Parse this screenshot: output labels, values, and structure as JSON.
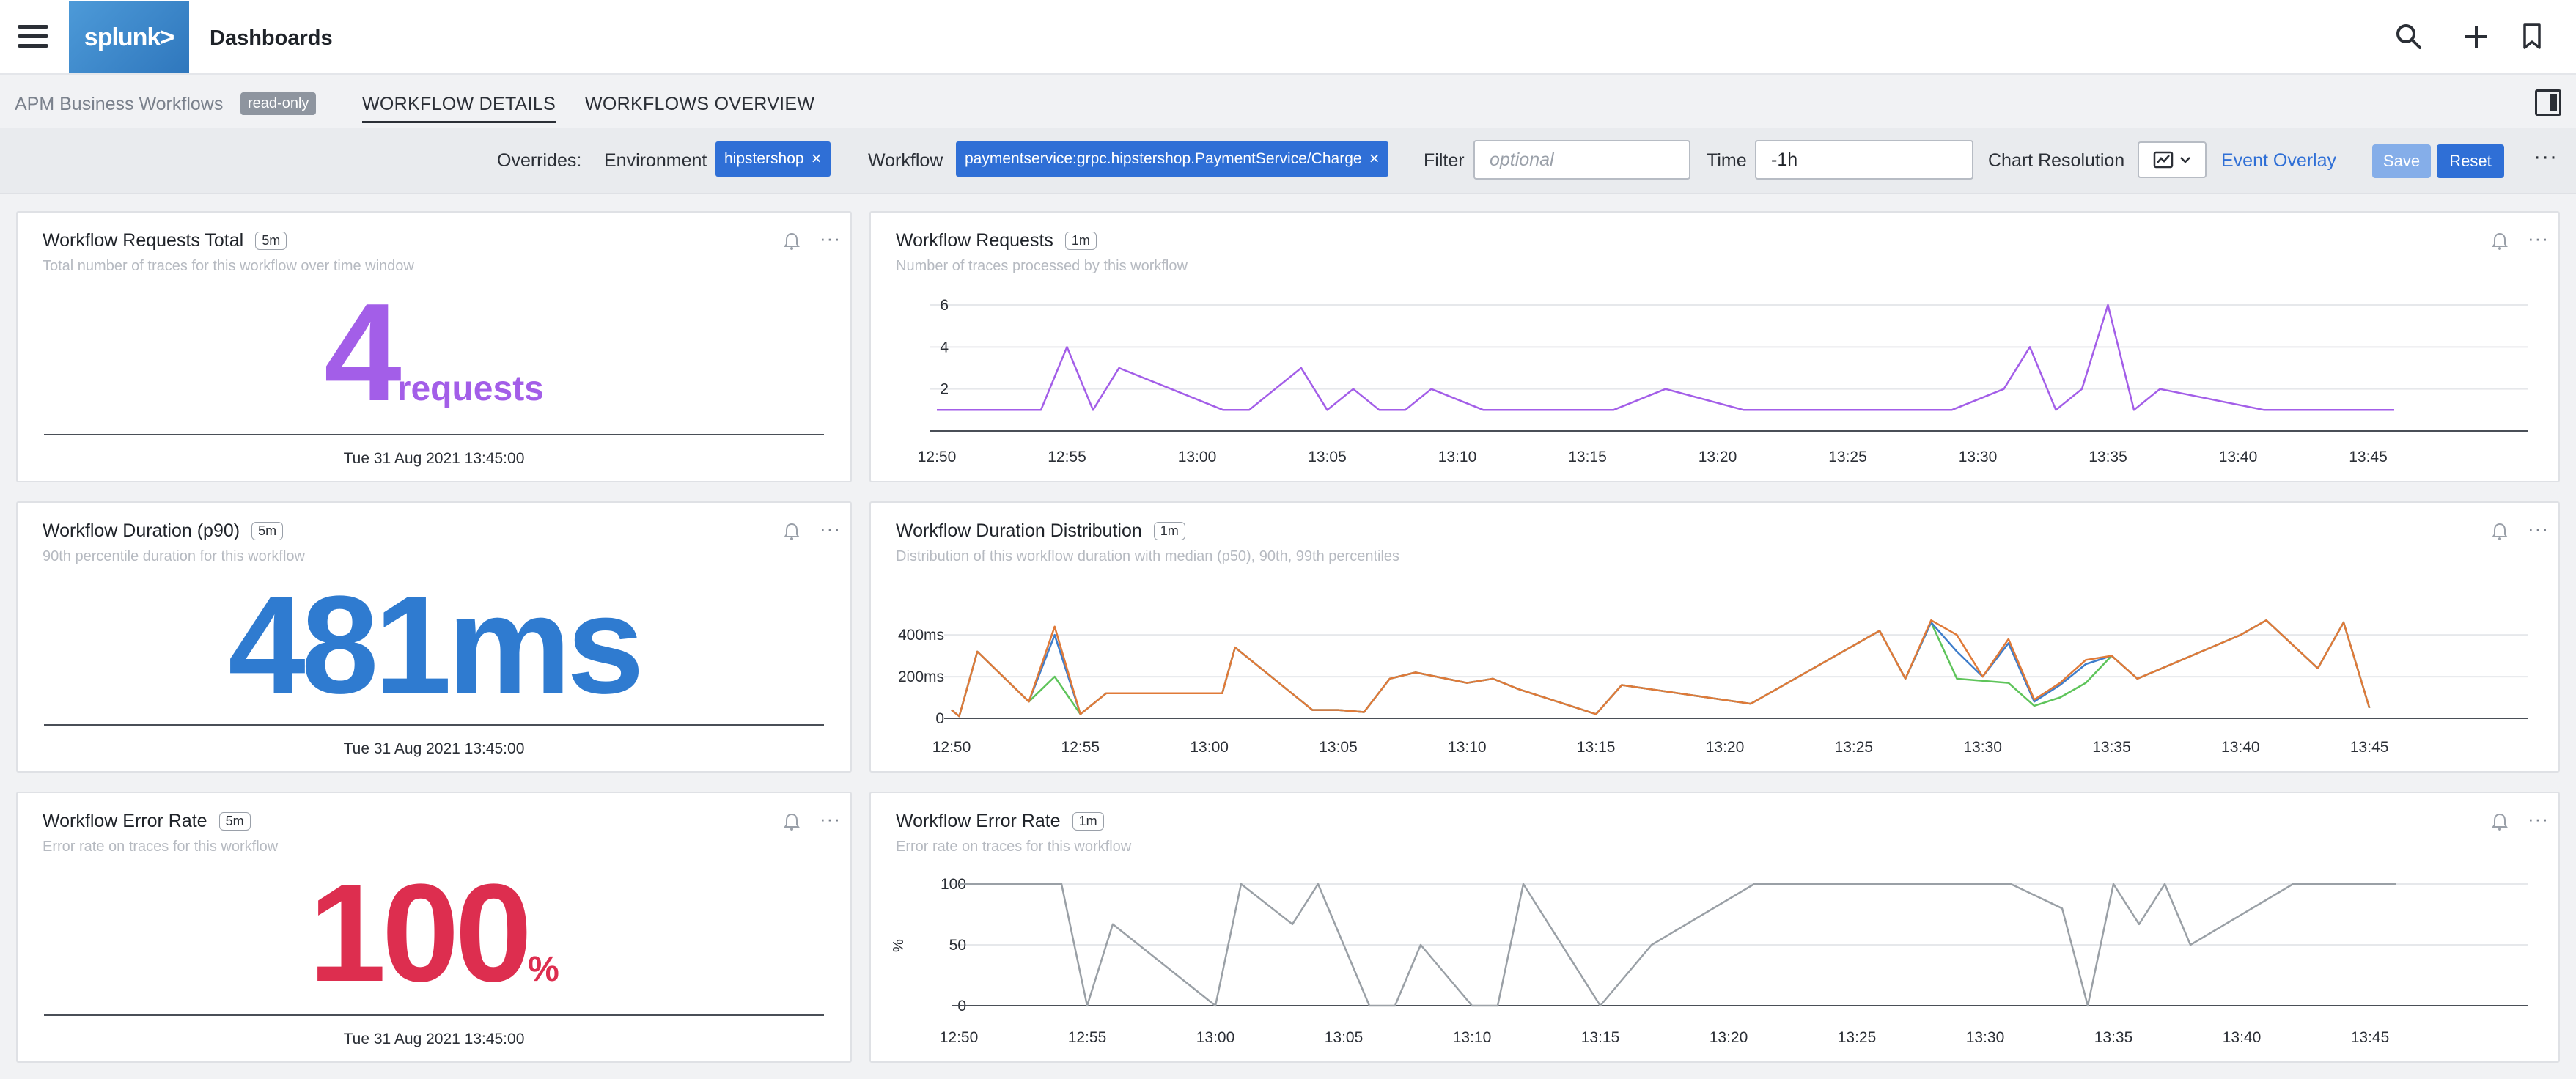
{
  "app": {
    "logo_text": "splunk>",
    "title": "Dashboards"
  },
  "tabs": {
    "breadcrumb": "APM Business Workflows",
    "readonly_badge": "read-only",
    "items": [
      {
        "label": "WORKFLOW DETAILS",
        "active": true
      },
      {
        "label": "WORKFLOWS OVERVIEW",
        "active": false
      }
    ]
  },
  "filters": {
    "overrides_label": "Overrides:",
    "environment_label": "Environment",
    "environment_value": "hipstershop",
    "workflow_label": "Workflow",
    "workflow_value": "paymentservice:grpc.hipstershop.PaymentService/Charge",
    "filter_label": "Filter",
    "filter_placeholder": "optional",
    "time_label": "Time",
    "time_value": "-1h",
    "chart_resolution_label": "Chart Resolution",
    "event_overlay": "Event Overlay",
    "save": "Save",
    "reset": "Reset",
    "remove_glyph": "×",
    "more_glyph": "···"
  },
  "colors": {
    "purple": "#a35ee8",
    "blue": "#2f7bd0",
    "red": "#dd2e4f",
    "p50": "#5ec45a",
    "p90": "#3e7dcb",
    "p99": "#e07a38",
    "error_line": "#9aa0a6"
  },
  "cards": {
    "requests_total": {
      "title": "Workflow Requests Total",
      "resolution": "5m",
      "subtitle": "Total number of traces for this workflow over time window",
      "value": "4",
      "unit": "requests",
      "timestamp": "Tue 31 Aug 2021 13:45:00"
    },
    "duration_p90": {
      "title": "Workflow Duration (p90)",
      "resolution": "5m",
      "subtitle": "90th percentile duration for this workflow",
      "value": "481",
      "unit": "ms",
      "timestamp": "Tue 31 Aug 2021 13:45:00"
    },
    "error_rate": {
      "title": "Workflow Error Rate",
      "resolution": "5m",
      "subtitle": "Error rate on traces for this workflow",
      "value": "100",
      "unit": "%",
      "timestamp": "Tue 31 Aug 2021 13:45:00"
    },
    "requests_chart": {
      "title": "Workflow Requests",
      "resolution": "1m",
      "subtitle": "Number of traces processed by this workflow"
    },
    "duration_chart": {
      "title": "Workflow Duration Distribution",
      "resolution": "1m",
      "subtitle": "Distribution of this workflow duration with median (p50), 90th, 99th percentiles"
    },
    "error_chart": {
      "title": "Workflow Error Rate",
      "resolution": "1m",
      "subtitle": "Error rate on traces for this workflow"
    }
  },
  "chart_data": [
    {
      "id": "requests",
      "type": "line",
      "title": "Workflow Requests",
      "xlabel": "",
      "ylabel": "",
      "xlim": [
        0,
        60
      ],
      "ylim": [
        0,
        6
      ],
      "x_ticks": [
        "12:50",
        "12:55",
        "13:00",
        "13:05",
        "13:10",
        "13:15",
        "13:20",
        "13:25",
        "13:30",
        "13:35",
        "13:40",
        "13:45"
      ],
      "y_ticks": [
        2,
        4,
        6
      ],
      "grid": true,
      "series": [
        {
          "color": "#a35ee8",
          "points": [
            [
              0,
              1
            ],
            [
              3,
              1
            ],
            [
              4,
              1
            ],
            [
              5,
              4
            ],
            [
              6,
              1
            ],
            [
              7,
              3
            ],
            [
              11,
              1
            ],
            [
              12,
              1
            ],
            [
              14,
              3
            ],
            [
              15,
              1
            ],
            [
              16,
              2
            ],
            [
              17,
              1
            ],
            [
              18,
              1
            ],
            [
              19,
              2
            ],
            [
              21,
              1
            ],
            [
              26,
              1
            ],
            [
              28,
              2
            ],
            [
              31,
              1
            ],
            [
              37,
              1
            ],
            [
              38,
              1
            ],
            [
              39,
              1
            ],
            [
              41,
              2
            ],
            [
              42,
              4
            ],
            [
              43,
              1
            ],
            [
              44,
              2
            ],
            [
              45,
              6
            ],
            [
              46,
              1
            ],
            [
              47,
              2
            ],
            [
              51,
              1
            ],
            [
              55,
              1
            ],
            [
              56,
              1
            ]
          ]
        }
      ]
    },
    {
      "id": "duration",
      "type": "line",
      "title": "Workflow Duration Distribution",
      "xlabel": "",
      "ylabel": "",
      "xlim": [
        0,
        60
      ],
      "ylim": [
        0,
        520
      ],
      "x_ticks": [
        "12:50",
        "12:55",
        "13:00",
        "13:05",
        "13:10",
        "13:15",
        "13:20",
        "13:25",
        "13:30",
        "13:35",
        "13:40",
        "13:45"
      ],
      "y_ticks": [
        "0",
        "200ms",
        "400ms"
      ],
      "y_tick_values": [
        0,
        200,
        400
      ],
      "grid": true,
      "series": [
        {
          "color": "#5ec45a",
          "points": [
            [
              0,
              40
            ],
            [
              0.3,
              10
            ],
            [
              1,
              320
            ],
            [
              3,
              80
            ],
            [
              4,
              200
            ],
            [
              5,
              20
            ],
            [
              6,
              120
            ],
            [
              10,
              120
            ],
            [
              10.5,
              120
            ],
            [
              11,
              340
            ],
            [
              14,
              40
            ],
            [
              15,
              40
            ],
            [
              16,
              30
            ],
            [
              17,
              190
            ],
            [
              18,
              220
            ],
            [
              20,
              170
            ],
            [
              21,
              190
            ],
            [
              22,
              140
            ],
            [
              25,
              20
            ],
            [
              26,
              160
            ],
            [
              31,
              70
            ],
            [
              36,
              420
            ],
            [
              37,
              190
            ],
            [
              38,
              460
            ],
            [
              39,
              190
            ],
            [
              40,
              180
            ],
            [
              41,
              170
            ],
            [
              42,
              60
            ],
            [
              43,
              100
            ],
            [
              44,
              170
            ],
            [
              45,
              300
            ],
            [
              46,
              190
            ],
            [
              50,
              400
            ],
            [
              51,
              470
            ],
            [
              53,
              240
            ],
            [
              54,
              460
            ],
            [
              55,
              50
            ]
          ]
        },
        {
          "color": "#3e7dcb",
          "points": [
            [
              0,
              40
            ],
            [
              0.3,
              10
            ],
            [
              1,
              320
            ],
            [
              3,
              80
            ],
            [
              4,
              400
            ],
            [
              5,
              20
            ],
            [
              6,
              120
            ],
            [
              10,
              120
            ],
            [
              10.5,
              120
            ],
            [
              11,
              340
            ],
            [
              14,
              40
            ],
            [
              15,
              40
            ],
            [
              16,
              30
            ],
            [
              17,
              190
            ],
            [
              18,
              220
            ],
            [
              20,
              170
            ],
            [
              21,
              190
            ],
            [
              22,
              140
            ],
            [
              25,
              20
            ],
            [
              26,
              160
            ],
            [
              31,
              70
            ],
            [
              36,
              420
            ],
            [
              37,
              190
            ],
            [
              38,
              460
            ],
            [
              39,
              320
            ],
            [
              40,
              200
            ],
            [
              41,
              360
            ],
            [
              42,
              80
            ],
            [
              43,
              160
            ],
            [
              44,
              260
            ],
            [
              45,
              300
            ],
            [
              46,
              190
            ],
            [
              50,
              400
            ],
            [
              51,
              470
            ],
            [
              53,
              240
            ],
            [
              54,
              460
            ],
            [
              55,
              50
            ]
          ]
        },
        {
          "color": "#e07a38",
          "points": [
            [
              0,
              40
            ],
            [
              0.3,
              10
            ],
            [
              1,
              320
            ],
            [
              3,
              80
            ],
            [
              4,
              440
            ],
            [
              5,
              20
            ],
            [
              6,
              120
            ],
            [
              10,
              120
            ],
            [
              10.5,
              120
            ],
            [
              11,
              340
            ],
            [
              14,
              40
            ],
            [
              15,
              40
            ],
            [
              16,
              30
            ],
            [
              17,
              190
            ],
            [
              18,
              220
            ],
            [
              20,
              170
            ],
            [
              21,
              190
            ],
            [
              22,
              140
            ],
            [
              25,
              20
            ],
            [
              26,
              160
            ],
            [
              31,
              70
            ],
            [
              36,
              420
            ],
            [
              37,
              190
            ],
            [
              38,
              470
            ],
            [
              39,
              400
            ],
            [
              40,
              200
            ],
            [
              41,
              380
            ],
            [
              42,
              90
            ],
            [
              43,
              170
            ],
            [
              44,
              280
            ],
            [
              45,
              300
            ],
            [
              46,
              190
            ],
            [
              50,
              400
            ],
            [
              51,
              470
            ],
            [
              53,
              240
            ],
            [
              54,
              460
            ],
            [
              55,
              50
            ]
          ]
        }
      ]
    },
    {
      "id": "error_rate",
      "type": "line",
      "title": "Workflow Error Rate",
      "xlabel": "",
      "ylabel": "%",
      "xlim": [
        0,
        60
      ],
      "ylim": [
        0,
        100
      ],
      "x_ticks": [
        "12:50",
        "12:55",
        "13:00",
        "13:05",
        "13:10",
        "13:15",
        "13:20",
        "13:25",
        "13:30",
        "13:35",
        "13:40",
        "13:45"
      ],
      "y_ticks": [
        0,
        50,
        100
      ],
      "grid": true,
      "series": [
        {
          "color": "#9aa0a6",
          "points": [
            [
              0,
              100
            ],
            [
              4,
              100
            ],
            [
              5,
              0
            ],
            [
              6,
              67
            ],
            [
              10,
              0
            ],
            [
              11,
              100
            ],
            [
              13,
              67
            ],
            [
              14,
              100
            ],
            [
              16,
              0
            ],
            [
              17,
              0
            ],
            [
              18,
              50
            ],
            [
              20,
              0
            ],
            [
              21,
              0
            ],
            [
              22,
              100
            ],
            [
              25,
              0
            ],
            [
              27,
              50
            ],
            [
              31,
              100
            ],
            [
              41,
              100
            ],
            [
              43,
              80
            ],
            [
              44,
              0
            ],
            [
              45,
              100
            ],
            [
              46,
              67
            ],
            [
              47,
              100
            ],
            [
              48,
              50
            ],
            [
              52,
              100
            ],
            [
              56,
              100
            ]
          ]
        }
      ]
    }
  ]
}
